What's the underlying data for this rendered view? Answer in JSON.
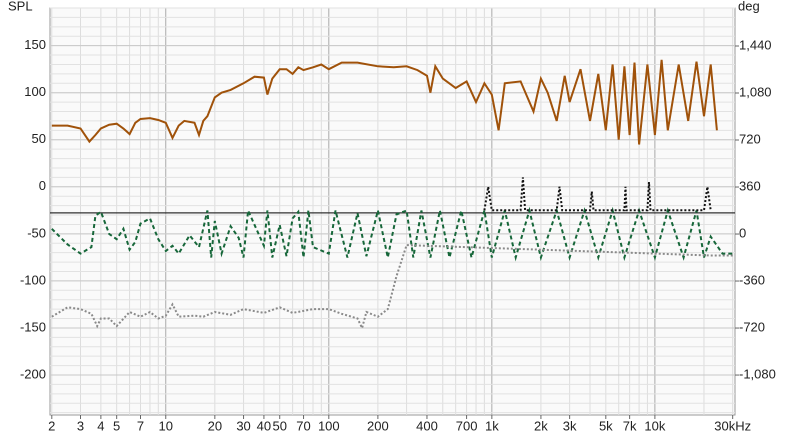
{
  "chart_data": {
    "type": "line",
    "ylabel": "SPL",
    "y2label": "deg",
    "log_x": true,
    "grid": true,
    "xlim": [
      1.95,
      31000
    ],
    "ylim": [
      -242.5,
      190
    ],
    "y2lim": [
      -1386,
      1731
    ],
    "xticks": [
      2,
      3,
      4,
      5,
      7,
      10,
      20,
      30,
      40,
      50,
      70,
      100,
      200,
      400,
      700,
      {
        "value": 1000,
        "label": "1k"
      },
      {
        "value": 2000,
        "label": "2k"
      },
      {
        "value": 3000,
        "label": "3k"
      },
      {
        "value": 5000,
        "label": "5k"
      },
      {
        "value": 7000,
        "label": "7k"
      },
      {
        "value": 10000,
        "label": "10k"
      },
      {
        "value": 30000,
        "label": "30kHz"
      }
    ],
    "yticks": [
      150,
      100,
      50,
      {
        "value": 0,
        "label": "0"
      },
      {
        "value": -50,
        "label": "-50"
      },
      {
        "value": -100,
        "label": "-100"
      },
      {
        "value": -150,
        "label": "-150"
      },
      {
        "value": -200,
        "label": "-200"
      }
    ],
    "y2ticks": [
      {
        "value": 1440,
        "label": "1,440"
      },
      {
        "value": 1080,
        "label": "1,080"
      },
      720,
      360,
      0,
      {
        "value": -360,
        "label": "-360"
      },
      {
        "value": -720,
        "label": "-720"
      },
      {
        "value": -1080,
        "label": "-1,080"
      }
    ],
    "reference_line": -27.7,
    "series": [
      {
        "color": "#a0520a",
        "dash": "none",
        "axis": "y",
        "x": [
          2,
          2.5,
          3,
          3.4,
          3.7,
          4,
          4.5,
          5,
          5.5,
          6,
          6.5,
          7,
          8,
          9,
          10,
          11,
          12,
          13,
          15,
          16,
          17,
          18,
          20,
          22,
          25,
          30,
          35,
          40,
          42,
          45,
          50,
          55,
          60,
          65,
          70,
          80,
          90,
          100,
          120,
          150,
          200,
          250,
          300,
          350,
          400,
          420,
          450,
          500,
          600,
          700,
          800,
          900,
          1000,
          1100,
          1200,
          1500,
          1800,
          2000,
          2200,
          2500,
          2800,
          3000,
          3500,
          4000,
          4500,
          5000,
          5500,
          6000,
          6500,
          7000,
          7500,
          8000,
          9000,
          10000,
          11000,
          12000,
          14000,
          16000,
          18000,
          20000,
          22000,
          24000
        ],
        "values": [
          65,
          65,
          62,
          48,
          55,
          62,
          66,
          67,
          62,
          56,
          68,
          72,
          73,
          71,
          68,
          52,
          65,
          70,
          68,
          55,
          70,
          75,
          95,
          100,
          103,
          110,
          117,
          116,
          98,
          115,
          125,
          125,
          120,
          127,
          124,
          127,
          130,
          125,
          132,
          132,
          128,
          127,
          128,
          124,
          118,
          100,
          128,
          115,
          105,
          112,
          90,
          110,
          98,
          60,
          110,
          112,
          80,
          115,
          100,
          70,
          118,
          90,
          125,
          70,
          120,
          60,
          130,
          50,
          128,
          55,
          132,
          45,
          130,
          55,
          135,
          60,
          130,
          70,
          133,
          75,
          130,
          60
        ]
      },
      {
        "color": "#17673a",
        "dash": "4 3",
        "axis": "y2",
        "x": [
          2,
          2.5,
          3,
          3.5,
          3.7,
          4,
          4.5,
          5,
          5.5,
          6,
          6.5,
          7,
          8,
          9,
          10,
          11,
          12,
          14,
          16,
          18,
          19,
          20,
          22,
          25,
          28,
          30,
          32,
          40,
          42,
          45,
          50,
          55,
          60,
          65,
          70,
          75,
          80,
          100,
          110,
          130,
          150,
          170,
          200,
          230,
          260,
          300,
          330,
          370,
          420,
          480,
          550,
          650,
          750,
          900,
          1000,
          1200,
          1400,
          1700,
          2000,
          2500,
          3000,
          3700,
          4500,
          5500,
          6500,
          8000,
          10000,
          12000,
          15000,
          18000,
          20000,
          22000,
          26000,
          30000
        ],
        "values": [
          40,
          -80,
          -150,
          -100,
          140,
          170,
          0,
          -40,
          40,
          -120,
          -60,
          80,
          120,
          -40,
          -130,
          -90,
          -150,
          -10,
          -100,
          180,
          -180,
          100,
          -150,
          60,
          -30,
          -180,
          180,
          -90,
          180,
          -180,
          70,
          -170,
          120,
          170,
          -180,
          180,
          -100,
          -150,
          180,
          -180,
          160,
          -170,
          180,
          -180,
          150,
          180,
          -180,
          180,
          -180,
          180,
          -180,
          180,
          -180,
          180,
          -180,
          180,
          -180,
          180,
          -180,
          180,
          -180,
          180,
          -180,
          180,
          -180,
          180,
          -180,
          180,
          -180,
          180,
          -180,
          -20,
          -150,
          -150
        ]
      },
      {
        "color": "#111111",
        "dash": "2 2",
        "axis": "y",
        "x": [
          900,
          950,
          1000,
          1500,
          1550,
          1600,
          2500,
          2600,
          2700,
          4000,
          4100,
          4200,
          6500,
          6600,
          6700,
          9000,
          9200,
          9400,
          20000,
          21000,
          22000
        ],
        "values": [
          -25,
          0,
          -25,
          -25,
          10,
          -25,
          -25,
          0,
          -25,
          -25,
          -5,
          -25,
          -25,
          0,
          -25,
          -25,
          5,
          -25,
          -25,
          0,
          -25
        ]
      },
      {
        "color": "#8a8a8a",
        "dash": "2 2",
        "axis": "y",
        "x": [
          2,
          2.5,
          3,
          3.5,
          3.8,
          4,
          4.5,
          5,
          6,
          7,
          8,
          9,
          10,
          11,
          12,
          15,
          17,
          20,
          25,
          30,
          40,
          50,
          60,
          80,
          100,
          120,
          150,
          160,
          170,
          200,
          230,
          260,
          280,
          300,
          22000,
          25000,
          30000
        ],
        "values": [
          -138,
          -128,
          -130,
          -135,
          -148,
          -140,
          -140,
          -148,
          -133,
          -138,
          -133,
          -140,
          -137,
          -125,
          -138,
          -137,
          -138,
          -133,
          -136,
          -130,
          -134,
          -128,
          -134,
          -130,
          -130,
          -135,
          -140,
          -150,
          -133,
          -138,
          -130,
          -95,
          -78,
          -62,
          -73,
          -73,
          -73
        ]
      }
    ]
  }
}
